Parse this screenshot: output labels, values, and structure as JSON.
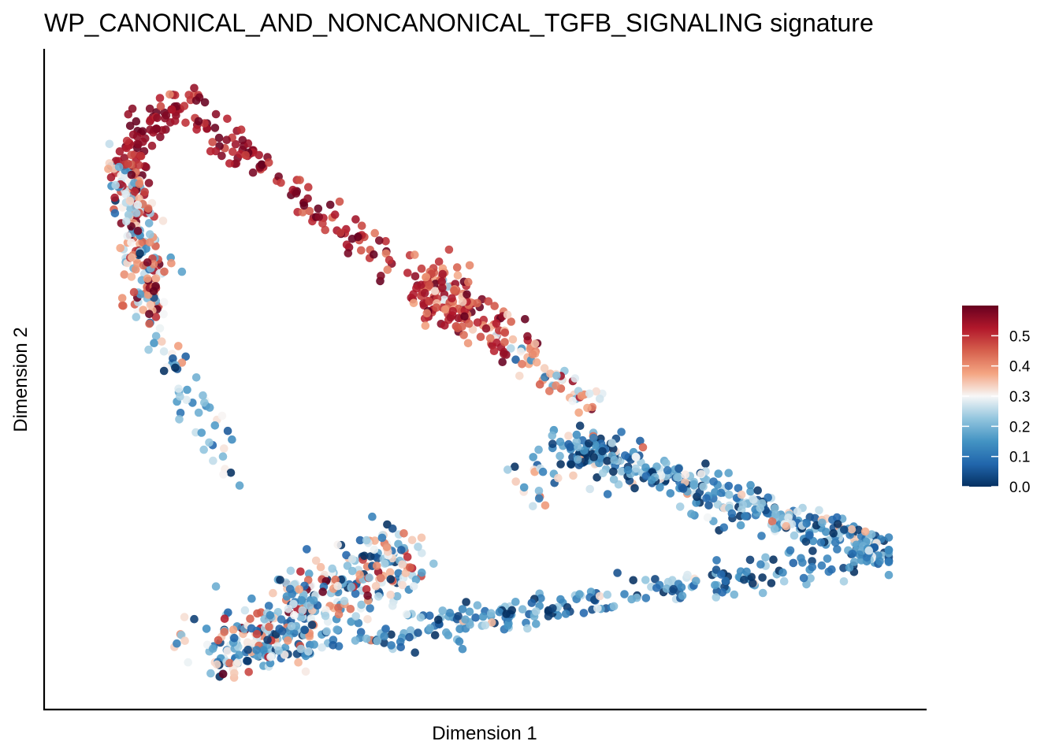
{
  "chart_data": {
    "type": "scatter",
    "title": "WP_CANONICAL_AND_NONCANONICAL_TGFB_SIGNALING signature",
    "xlabel": "Dimension 1",
    "ylabel": "Dimension 2",
    "x_ticks_shown": false,
    "y_ticks_shown": false,
    "grid": false,
    "legend": {
      "position": "right",
      "type": "colorbar",
      "ticks": [
        "0.0",
        "0.1",
        "0.2",
        "0.3",
        "0.4",
        "0.5"
      ],
      "range": [
        0.0,
        0.6
      ]
    },
    "colormap": [
      "#053061",
      "#2166ac",
      "#4393c3",
      "#92c5de",
      "#f7f7f7",
      "#f4a582",
      "#d6604d",
      "#b2182b",
      "#67001f"
    ],
    "series": [
      {
        "segments": [
          {
            "from": [
              0.1,
              0.96
            ],
            "to": [
              0.04,
              0.86
            ],
            "count": 70,
            "spread": 0.012,
            "value": 0.56,
            "value_spread": 0.04
          },
          {
            "from": [
              0.04,
              0.86
            ],
            "to": [
              0.07,
              0.62
            ],
            "count": 200,
            "spread": 0.014,
            "value": 0.36,
            "value_spread": 0.17
          },
          {
            "from": [
              0.07,
              0.62
            ],
            "to": [
              0.17,
              0.34
            ],
            "count": 55,
            "spread": 0.015,
            "value": 0.22,
            "value_spread": 0.13
          },
          {
            "from": [
              0.11,
              0.96
            ],
            "to": [
              0.47,
              0.58
            ],
            "count": 160,
            "spread": 0.012,
            "value": 0.54,
            "value_spread": 0.05
          },
          {
            "from": [
              0.41,
              0.68
            ],
            "to": [
              0.53,
              0.55
            ],
            "count": 130,
            "spread": 0.018,
            "value": 0.46,
            "value_spread": 0.09
          },
          {
            "from": [
              0.53,
              0.55
            ],
            "to": [
              0.63,
              0.46
            ],
            "count": 50,
            "spread": 0.014,
            "value": 0.33,
            "value_spread": 0.12
          },
          {
            "from": [
              0.58,
              0.4
            ],
            "to": [
              1.0,
              0.21
            ],
            "count": 380,
            "spread": 0.016,
            "value": 0.15,
            "value_spread": 0.12
          },
          {
            "from": [
              0.16,
              0.04
            ],
            "to": [
              1.0,
              0.21
            ],
            "count": 300,
            "spread": 0.014,
            "value": 0.14,
            "value_spread": 0.1
          },
          {
            "from": [
              0.16,
              0.04
            ],
            "to": [
              0.37,
              0.21
            ],
            "count": 320,
            "spread": 0.03,
            "value": 0.24,
            "value_spread": 0.15
          },
          {
            "from": [
              0.36,
              0.24
            ],
            "to": [
              0.4,
              0.14
            ],
            "count": 45,
            "spread": 0.018,
            "value": 0.3,
            "value_spread": 0.12
          },
          {
            "from": [
              0.55,
              0.31
            ],
            "to": [
              0.63,
              0.4
            ],
            "count": 40,
            "spread": 0.02,
            "value": 0.18,
            "value_spread": 0.15
          }
        ]
      }
    ]
  }
}
